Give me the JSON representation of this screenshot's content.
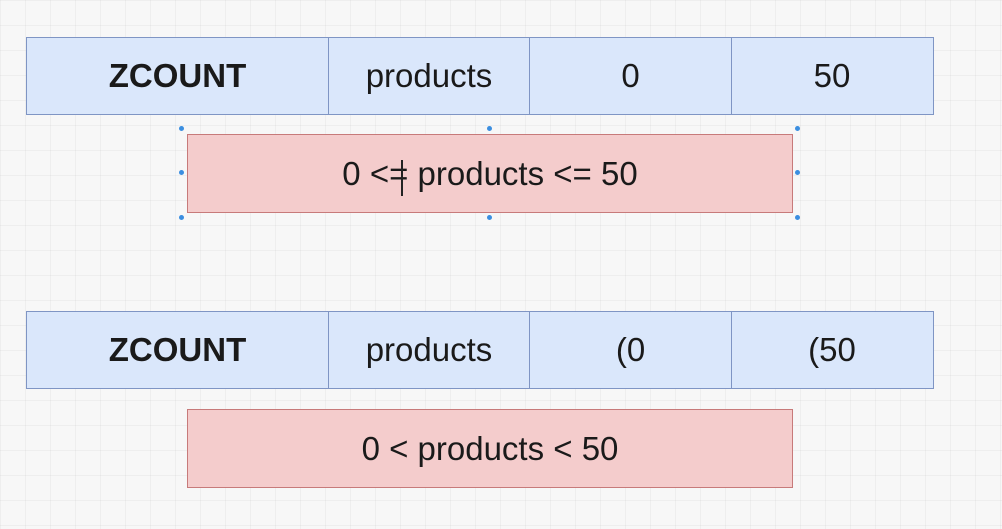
{
  "diagram": {
    "top_example": {
      "command": "ZCOUNT",
      "key": "products",
      "min": "0",
      "max": "50",
      "meaning": "0 <= products <= 50"
    },
    "bottom_example": {
      "command": "ZCOUNT",
      "key": "products",
      "min": "(0",
      "max": "(50",
      "meaning": "0 < products < 50"
    },
    "colors": {
      "command_fill": "#dae7fb",
      "command_border": "#7f95c4",
      "range_fill": "#f4cccc",
      "range_border": "#c77a7a",
      "selection_handle": "#3b8ee0"
    }
  }
}
